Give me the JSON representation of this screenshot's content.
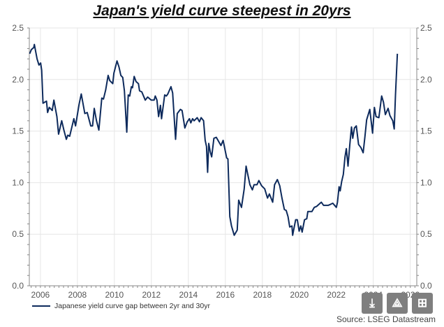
{
  "chart_data": {
    "type": "line",
    "title": "Japan's yield curve steepest in 20yrs",
    "xlabel": "",
    "ylabel": "",
    "xlim": [
      2005.4,
      2026.35
    ],
    "ylim": [
      0,
      2.5
    ],
    "xticks": [
      2006,
      2008,
      2010,
      2012,
      2014,
      2016,
      2018,
      2020,
      2022,
      2024,
      2026
    ],
    "yticks": [
      "0.0",
      "0.5",
      "1.0",
      "1.5",
      "2.0",
      "2.5"
    ],
    "grid": true,
    "legend_position": "bottom-left",
    "series": [
      {
        "name": "Japanese yield curve gap between 2yr and 30yr",
        "color": "#0d2a5c",
        "points": [
          [
            2005.42,
            2.25
          ],
          [
            2005.51,
            2.29
          ],
          [
            2005.64,
            2.31
          ],
          [
            2005.67,
            2.34
          ],
          [
            2005.82,
            2.2
          ],
          [
            2005.92,
            2.14
          ],
          [
            2006.01,
            2.16
          ],
          [
            2006.07,
            2.09
          ],
          [
            2006.14,
            1.77
          ],
          [
            2006.33,
            1.79
          ],
          [
            2006.39,
            1.68
          ],
          [
            2006.48,
            1.73
          ],
          [
            2006.64,
            1.7
          ],
          [
            2006.73,
            1.8
          ],
          [
            2006.89,
            1.64
          ],
          [
            2006.98,
            1.47
          ],
          [
            2007.15,
            1.6
          ],
          [
            2007.27,
            1.51
          ],
          [
            2007.4,
            1.42
          ],
          [
            2007.48,
            1.46
          ],
          [
            2007.58,
            1.45
          ],
          [
            2007.81,
            1.62
          ],
          [
            2007.9,
            1.55
          ],
          [
            2008.09,
            1.76
          ],
          [
            2008.21,
            1.86
          ],
          [
            2008.4,
            1.67
          ],
          [
            2008.53,
            1.68
          ],
          [
            2008.72,
            1.55
          ],
          [
            2008.82,
            1.55
          ],
          [
            2008.91,
            1.72
          ],
          [
            2009.03,
            1.6
          ],
          [
            2009.16,
            1.51
          ],
          [
            2009.32,
            1.82
          ],
          [
            2009.41,
            1.81
          ],
          [
            2009.53,
            1.9
          ],
          [
            2009.66,
            2.04
          ],
          [
            2009.75,
            1.99
          ],
          [
            2009.91,
            1.96
          ],
          [
            2009.97,
            2.06
          ],
          [
            2010.14,
            2.18
          ],
          [
            2010.25,
            2.12
          ],
          [
            2010.35,
            2.04
          ],
          [
            2010.45,
            2.02
          ],
          [
            2010.54,
            1.89
          ],
          [
            2010.67,
            1.49
          ],
          [
            2010.75,
            1.85
          ],
          [
            2010.83,
            1.84
          ],
          [
            2010.92,
            1.93
          ],
          [
            2010.98,
            1.92
          ],
          [
            2011.07,
            2.03
          ],
          [
            2011.17,
            1.98
          ],
          [
            2011.3,
            1.96
          ],
          [
            2011.36,
            1.89
          ],
          [
            2011.48,
            1.88
          ],
          [
            2011.67,
            1.8
          ],
          [
            2011.8,
            1.83
          ],
          [
            2011.99,
            1.8
          ],
          [
            2012.15,
            1.8
          ],
          [
            2012.21,
            1.84
          ],
          [
            2012.3,
            1.8
          ],
          [
            2012.39,
            1.64
          ],
          [
            2012.49,
            1.75
          ],
          [
            2012.55,
            1.62
          ],
          [
            2012.72,
            1.85
          ],
          [
            2012.81,
            1.84
          ],
          [
            2012.89,
            1.86
          ],
          [
            2013.06,
            1.93
          ],
          [
            2013.15,
            1.87
          ],
          [
            2013.31,
            1.42
          ],
          [
            2013.4,
            1.67
          ],
          [
            2013.57,
            1.71
          ],
          [
            2013.66,
            1.7
          ],
          [
            2013.81,
            1.53
          ],
          [
            2013.94,
            1.59
          ],
          [
            2014.06,
            1.62
          ],
          [
            2014.13,
            1.58
          ],
          [
            2014.23,
            1.62
          ],
          [
            2014.31,
            1.6
          ],
          [
            2014.48,
            1.63
          ],
          [
            2014.6,
            1.59
          ],
          [
            2014.69,
            1.63
          ],
          [
            2014.82,
            1.6
          ],
          [
            2014.91,
            1.41
          ],
          [
            2014.98,
            1.35
          ],
          [
            2015.04,
            1.1
          ],
          [
            2015.1,
            1.38
          ],
          [
            2015.18,
            1.3
          ],
          [
            2015.26,
            1.25
          ],
          [
            2015.38,
            1.43
          ],
          [
            2015.51,
            1.44
          ],
          [
            2015.76,
            1.36
          ],
          [
            2015.88,
            1.41
          ],
          [
            2016.07,
            1.24
          ],
          [
            2016.14,
            1.23
          ],
          [
            2016.24,
            0.67
          ],
          [
            2016.33,
            0.58
          ],
          [
            2016.48,
            0.49
          ],
          [
            2016.64,
            0.54
          ],
          [
            2016.72,
            0.83
          ],
          [
            2016.87,
            0.76
          ],
          [
            2017.02,
            0.94
          ],
          [
            2017.12,
            1.16
          ],
          [
            2017.21,
            1.08
          ],
          [
            2017.33,
            0.98
          ],
          [
            2017.46,
            0.93
          ],
          [
            2017.55,
            0.98
          ],
          [
            2017.71,
            0.98
          ],
          [
            2017.81,
            1.02
          ],
          [
            2017.96,
            0.97
          ],
          [
            2018.13,
            0.94
          ],
          [
            2018.28,
            0.85
          ],
          [
            2018.38,
            0.89
          ],
          [
            2018.56,
            0.81
          ],
          [
            2018.66,
            0.98
          ],
          [
            2018.81,
            1.03
          ],
          [
            2018.94,
            0.97
          ],
          [
            2019.06,
            0.85
          ],
          [
            2019.19,
            0.74
          ],
          [
            2019.29,
            0.73
          ],
          [
            2019.39,
            0.67
          ],
          [
            2019.48,
            0.57
          ],
          [
            2019.6,
            0.58
          ],
          [
            2019.64,
            0.49
          ],
          [
            2019.8,
            0.64
          ],
          [
            2019.89,
            0.64
          ],
          [
            2019.99,
            0.53
          ],
          [
            2020.08,
            0.58
          ],
          [
            2020.15,
            0.52
          ],
          [
            2020.28,
            0.64
          ],
          [
            2020.4,
            0.65
          ],
          [
            2020.46,
            0.72
          ],
          [
            2020.68,
            0.72
          ],
          [
            2020.81,
            0.76
          ],
          [
            2020.94,
            0.77
          ],
          [
            2021.06,
            0.79
          ],
          [
            2021.19,
            0.81
          ],
          [
            2021.31,
            0.78
          ],
          [
            2021.44,
            0.78
          ],
          [
            2021.56,
            0.78
          ],
          [
            2021.69,
            0.79
          ],
          [
            2021.81,
            0.8
          ],
          [
            2022.0,
            0.76
          ],
          [
            2022.06,
            0.81
          ],
          [
            2022.15,
            0.96
          ],
          [
            2022.21,
            0.92
          ],
          [
            2022.29,
            1.01
          ],
          [
            2022.38,
            1.08
          ],
          [
            2022.47,
            1.25
          ],
          [
            2022.54,
            1.33
          ],
          [
            2022.63,
            1.16
          ],
          [
            2022.73,
            1.37
          ],
          [
            2022.82,
            1.54
          ],
          [
            2022.89,
            1.43
          ],
          [
            2022.98,
            1.53
          ],
          [
            2023.08,
            1.55
          ],
          [
            2023.2,
            1.37
          ],
          [
            2023.33,
            1.34
          ],
          [
            2023.45,
            1.29
          ],
          [
            2023.55,
            1.45
          ],
          [
            2023.64,
            1.61
          ],
          [
            2023.81,
            1.71
          ],
          [
            2023.96,
            1.48
          ],
          [
            2024.06,
            1.73
          ],
          [
            2024.15,
            1.64
          ],
          [
            2024.3,
            1.63
          ],
          [
            2024.45,
            1.84
          ],
          [
            2024.55,
            1.78
          ],
          [
            2024.65,
            1.66
          ],
          [
            2024.8,
            1.72
          ],
          [
            2024.9,
            1.65
          ],
          [
            2025.05,
            1.6
          ],
          [
            2025.13,
            1.52
          ],
          [
            2025.2,
            1.85
          ],
          [
            2025.3,
            2.25
          ]
        ]
      }
    ]
  },
  "legend_label": "Japanese yield curve gap between 2yr and 30yr",
  "source": "Source: LSEG Datastream",
  "buttons": {
    "download": "download-icon",
    "share": "share-icon",
    "add": "add-to-collection-icon"
  }
}
